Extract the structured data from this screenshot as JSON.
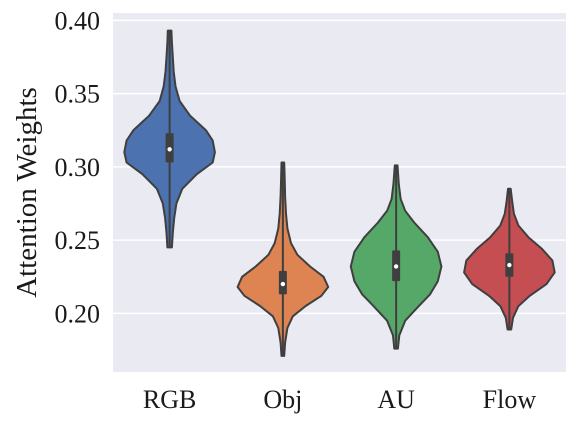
{
  "chart_data": {
    "type": "violin",
    "title": "",
    "xlabel": "",
    "ylabel": "Attention Weights",
    "ylim": [
      0.16,
      0.405
    ],
    "yticks": [
      "0.20",
      "0.25",
      "0.30",
      "0.35",
      "0.40"
    ],
    "grid": true,
    "background": "#EAEAF2",
    "categories": [
      "RGB",
      "Obj",
      "AU",
      "Flow"
    ],
    "series": [
      {
        "category": "RGB",
        "color": "#4C72B0",
        "min": 0.245,
        "q1": 0.303,
        "median": 0.312,
        "q3": 0.323,
        "max": 0.393,
        "density": [
          [
            0.245,
            0.05
          ],
          [
            0.255,
            0.07
          ],
          [
            0.265,
            0.1
          ],
          [
            0.275,
            0.15
          ],
          [
            0.285,
            0.28
          ],
          [
            0.295,
            0.6
          ],
          [
            0.303,
            0.95
          ],
          [
            0.31,
            1.0
          ],
          [
            0.318,
            0.95
          ],
          [
            0.325,
            0.8
          ],
          [
            0.335,
            0.45
          ],
          [
            0.345,
            0.22
          ],
          [
            0.355,
            0.13
          ],
          [
            0.365,
            0.09
          ],
          [
            0.375,
            0.07
          ],
          [
            0.385,
            0.05
          ],
          [
            0.393,
            0.04
          ]
        ]
      },
      {
        "category": "Obj",
        "color": "#DD8452",
        "min": 0.171,
        "q1": 0.213,
        "median": 0.22,
        "q3": 0.229,
        "max": 0.303,
        "density": [
          [
            0.171,
            0.03
          ],
          [
            0.18,
            0.05
          ],
          [
            0.19,
            0.1
          ],
          [
            0.198,
            0.22
          ],
          [
            0.205,
            0.5
          ],
          [
            0.212,
            0.85
          ],
          [
            0.218,
            1.0
          ],
          [
            0.225,
            0.9
          ],
          [
            0.232,
            0.6
          ],
          [
            0.24,
            0.32
          ],
          [
            0.248,
            0.18
          ],
          [
            0.258,
            0.1
          ],
          [
            0.268,
            0.07
          ],
          [
            0.28,
            0.05
          ],
          [
            0.292,
            0.04
          ],
          [
            0.303,
            0.03
          ]
        ]
      },
      {
        "category": "AU",
        "color": "#55A868",
        "min": 0.176,
        "q1": 0.222,
        "median": 0.232,
        "q3": 0.243,
        "max": 0.301,
        "density": [
          [
            0.176,
            0.04
          ],
          [
            0.185,
            0.07
          ],
          [
            0.195,
            0.2
          ],
          [
            0.205,
            0.5
          ],
          [
            0.213,
            0.75
          ],
          [
            0.222,
            0.92
          ],
          [
            0.232,
            1.0
          ],
          [
            0.242,
            0.92
          ],
          [
            0.252,
            0.7
          ],
          [
            0.262,
            0.4
          ],
          [
            0.27,
            0.2
          ],
          [
            0.278,
            0.1
          ],
          [
            0.288,
            0.06
          ],
          [
            0.301,
            0.03
          ]
        ]
      },
      {
        "category": "Flow",
        "color": "#C44E52",
        "min": 0.189,
        "q1": 0.225,
        "median": 0.233,
        "q3": 0.241,
        "max": 0.285,
        "density": [
          [
            0.189,
            0.04
          ],
          [
            0.197,
            0.08
          ],
          [
            0.205,
            0.2
          ],
          [
            0.212,
            0.45
          ],
          [
            0.22,
            0.82
          ],
          [
            0.228,
            1.0
          ],
          [
            0.236,
            0.95
          ],
          [
            0.244,
            0.72
          ],
          [
            0.252,
            0.42
          ],
          [
            0.26,
            0.2
          ],
          [
            0.268,
            0.1
          ],
          [
            0.277,
            0.06
          ],
          [
            0.285,
            0.03
          ]
        ]
      }
    ]
  }
}
